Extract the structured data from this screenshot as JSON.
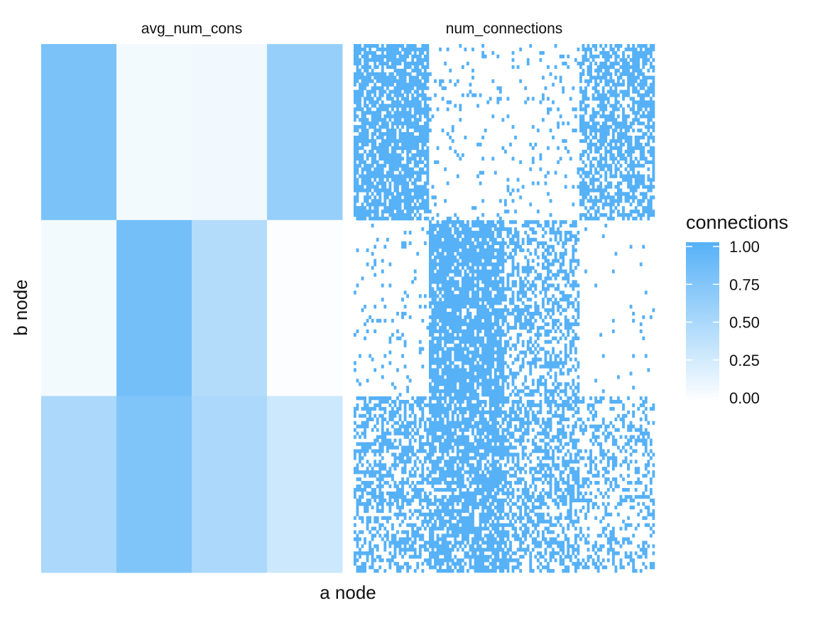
{
  "chart_data": {
    "type": "heatmap",
    "xlabel": "a node",
    "ylabel": "b node",
    "legend": {
      "title": "connections",
      "placement": "right",
      "ticks": [
        "1.00",
        "0.75",
        "0.50",
        "0.25",
        "0.00"
      ],
      "range": [
        0,
        1
      ],
      "low_color": "#ffffff",
      "high_color": "#56b1f7"
    },
    "panels": [
      {
        "title": "avg_num_cons",
        "kind": "block_matrix",
        "a_groups": 4,
        "b_groups": 3,
        "a_group_fractions": [
          0.25,
          0.25,
          0.25,
          0.25
        ],
        "b_group_fractions": [
          0.333,
          0.333,
          0.334
        ],
        "values": [
          [
            0.78,
            0.07,
            0.08,
            0.62
          ],
          [
            0.07,
            0.82,
            0.45,
            0.02
          ],
          [
            0.5,
            0.75,
            0.5,
            0.3
          ]
        ]
      },
      {
        "title": "num_connections",
        "kind": "binary_matrix",
        "a_nodes": 120,
        "b_nodes": 150,
        "a_group_sizes": [
          30,
          30,
          30,
          30
        ],
        "b_group_sizes": [
          50,
          50,
          50
        ],
        "pattern_note": "binary 0/1 connection matrix; connection density per block follows avg_num_cons"
      }
    ]
  }
}
